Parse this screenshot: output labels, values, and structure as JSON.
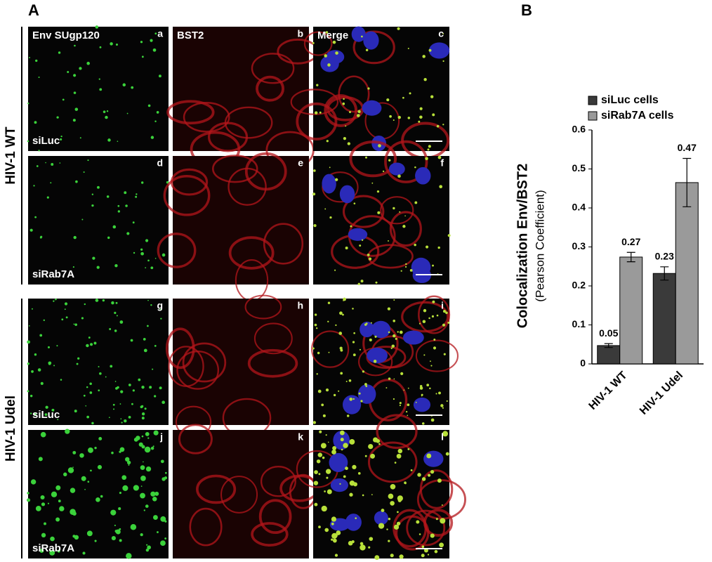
{
  "figure": {
    "panel_a": {
      "label": "A",
      "columns": [
        "Env SUgp120",
        "BST2",
        "Merge"
      ],
      "rows": [
        {
          "label": "HIV-1 WT",
          "subrows": [
            {
              "condition": "siLuc",
              "letters": [
                "a",
                "b",
                "c"
              ]
            },
            {
              "condition": "siRab7A",
              "letters": [
                "d",
                "e",
                "f"
              ]
            }
          ]
        },
        {
          "label": "HIV-1 Udel",
          "subrows": [
            {
              "condition": "siLuc",
              "letters": [
                "g",
                "h",
                "i"
              ]
            },
            {
              "condition": "siRab7A",
              "letters": [
                "j",
                "k",
                "l"
              ]
            }
          ]
        }
      ]
    },
    "panel_b": {
      "label": "B"
    }
  },
  "chart_data": {
    "type": "bar",
    "y_label": "Colocalization Env/BST2",
    "y_sublabel": "(Pearson Coefficient)",
    "categories": [
      "HIV-1 WT",
      "HIV-1 Udel"
    ],
    "series": [
      {
        "name": "siLuc cells",
        "color": "#3a3a3a",
        "values": [
          0.047,
          0.232
        ],
        "value_labels": [
          "0.05",
          "0.23"
        ],
        "errors": [
          0.005,
          0.017
        ]
      },
      {
        "name": "siRab7A cells",
        "color": "#9a9a9a",
        "values": [
          0.274,
          0.465
        ],
        "value_labels": [
          "0.27",
          "0.47"
        ],
        "errors": [
          0.012,
          0.062
        ]
      }
    ],
    "ylim": [
      0,
      0.6
    ],
    "yticks": [
      0,
      0.1,
      0.2,
      0.3,
      0.4,
      0.5,
      0.6
    ],
    "legend": "top-left"
  }
}
